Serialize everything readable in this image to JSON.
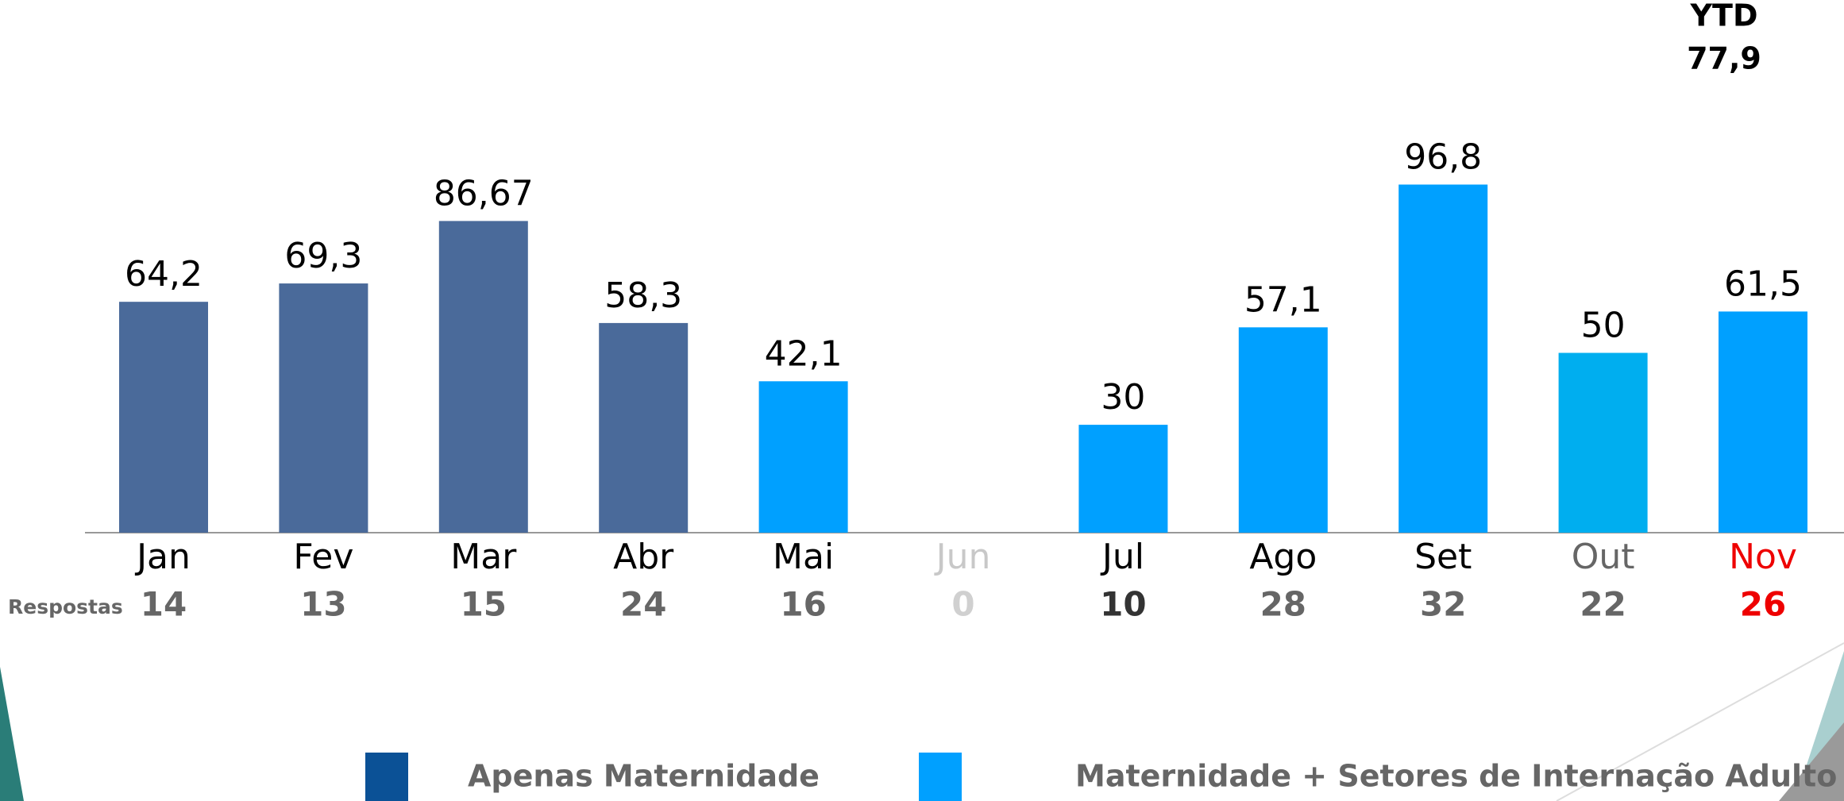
{
  "chart_data": {
    "type": "bar",
    "categories": [
      "Jan",
      "Fev",
      "Mar",
      "Abr",
      "Mai",
      "Jun",
      "Jul",
      "Ago",
      "Set",
      "Out",
      "Nov"
    ],
    "values": [
      64.2,
      69.3,
      86.67,
      58.3,
      42.1,
      null,
      30,
      57.1,
      96.8,
      50,
      61.5
    ],
    "value_labels": [
      "64,2",
      "69,3",
      "86,67",
      "58,3",
      "42,1",
      null,
      "30",
      "57,1",
      "96,8",
      "50",
      "61,5"
    ],
    "colors": [
      "#4a6a9a",
      "#4a6a9a",
      "#4a6a9a",
      "#4a6a9a",
      "#00a0ff",
      null,
      "#00a0ff",
      "#00a0ff",
      "#00a0ff",
      "#00aeef",
      "#00a0ff"
    ],
    "category_colors": [
      "#000000",
      "#000000",
      "#000000",
      "#000000",
      "#000000",
      "#c8c8c8",
      "#000000",
      "#000000",
      "#000000",
      "#666666",
      "#ee0000"
    ],
    "ylim": [
      0,
      100
    ],
    "responses": {
      "label": "Respostas",
      "values": [
        14,
        13,
        15,
        24,
        16,
        0,
        10,
        28,
        32,
        22,
        26
      ],
      "colors": [
        "#666666",
        "#666666",
        "#666666",
        "#666666",
        "#666666",
        "#d0d0d0",
        "#333333",
        "#666666",
        "#666666",
        "#666666",
        "#ee0000"
      ]
    },
    "ytd": {
      "label": "YTD",
      "value": 77.9,
      "value_label": "77,9"
    },
    "legend": [
      {
        "name": "Apenas Maternidade",
        "color": "#0b5196"
      },
      {
        "name": "Maternidade + Setores de Internação Adulto",
        "color": "#00a0ff"
      }
    ]
  }
}
